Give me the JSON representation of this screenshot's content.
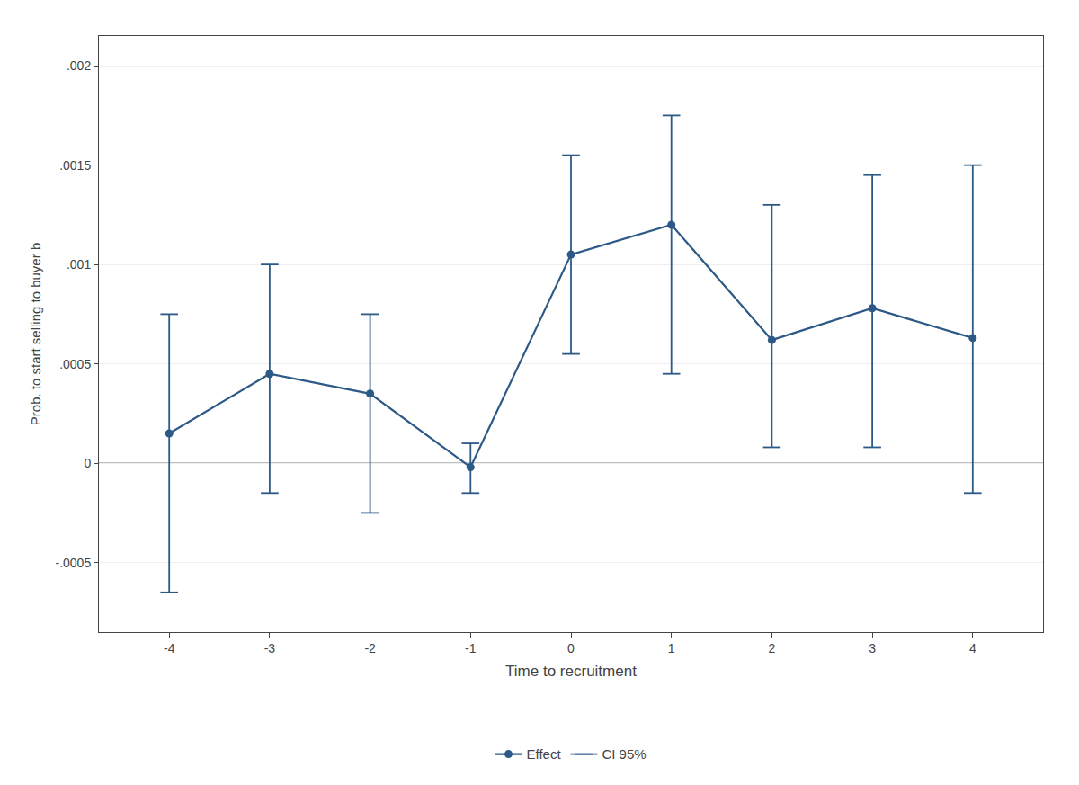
{
  "chart_data": {
    "type": "line",
    "xlabel": "Time to recruitment",
    "ylabel": "Prob. to start selling to buyer b",
    "x": [
      -4,
      -3,
      -2,
      -1,
      0,
      1,
      2,
      3,
      4
    ],
    "series": [
      {
        "name": "Effect",
        "type": "line",
        "color": "#2d5986",
        "marker": "circle",
        "line_style": "solid",
        "values": [
          0.00015,
          0.00045,
          0.00035,
          -2e-05,
          0.00105,
          0.0012,
          0.00062,
          0.00078,
          0.00063
        ]
      },
      {
        "name": "CI 95%",
        "type": "interval",
        "color": "#2d5986",
        "lower": [
          -0.00065,
          -0.00015,
          -0.00025,
          -0.00015,
          0.00055,
          0.00045,
          8e-05,
          8e-05,
          -0.00015
        ],
        "upper": [
          0.00075,
          0.001,
          0.00075,
          0.0001,
          0.00155,
          0.00175,
          0.0013,
          0.00145,
          0.0015
        ]
      }
    ],
    "hlines": [
      {
        "y": 0,
        "color": "#808080"
      }
    ],
    "xlim": [
      -4.7,
      4.7
    ],
    "xticks": [
      -4,
      -3,
      -2,
      -1,
      0,
      1,
      2,
      3,
      4
    ],
    "ylim": [
      -0.00085,
      0.00215
    ],
    "yticks": [
      {
        "value": -0.0005,
        "label": "-.0005"
      },
      0,
      {
        "value": 0.0005,
        "label": ".0005"
      },
      {
        "value": 0.001,
        "label": ".001"
      },
      {
        "value": 0.0015,
        "label": ".0015"
      },
      {
        "value": 0.002,
        "label": ".002"
      }
    ],
    "grid": "y",
    "legend": "bottom"
  }
}
